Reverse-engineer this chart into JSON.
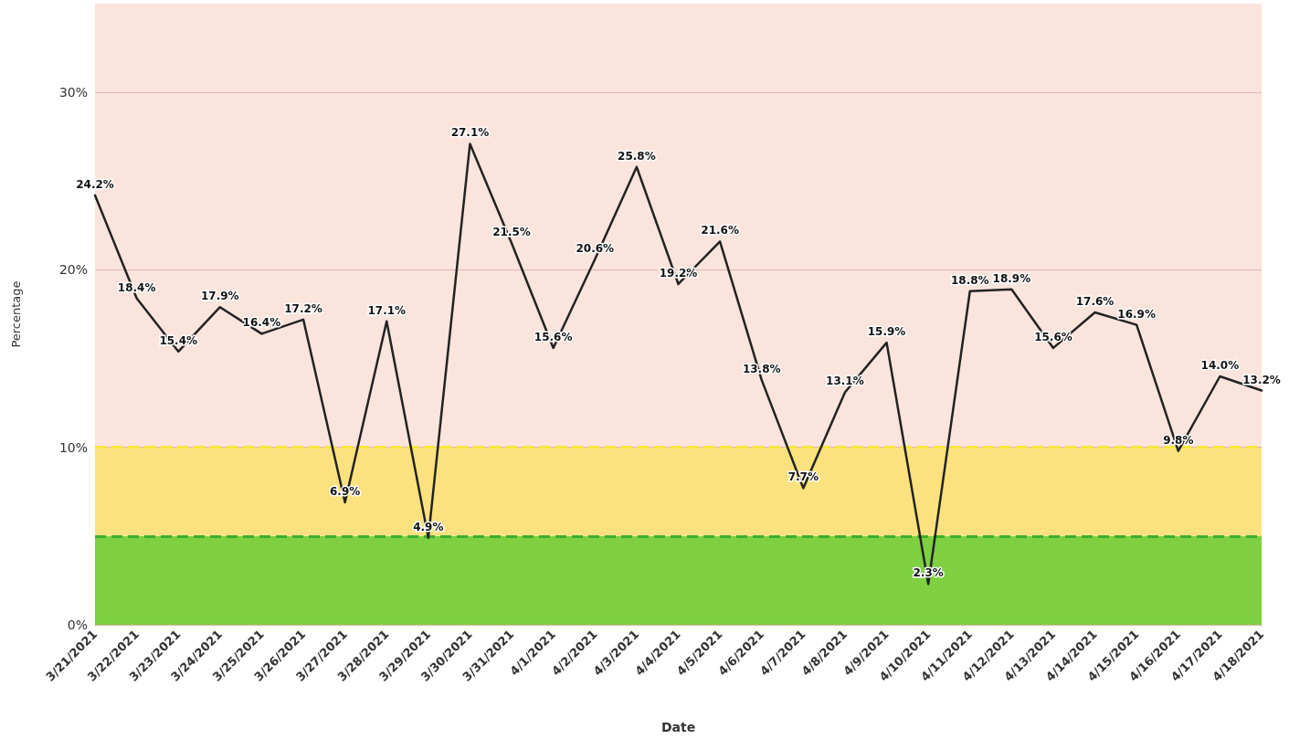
{
  "chart_data": {
    "type": "line",
    "xlabel": "Date",
    "ylabel": "Percentage",
    "categories": [
      "3/21/2021",
      "3/22/2021",
      "3/23/2021",
      "3/24/2021",
      "3/25/2021",
      "3/26/2021",
      "3/27/2021",
      "3/28/2021",
      "3/29/2021",
      "3/30/2021",
      "3/31/2021",
      "4/1/2021",
      "4/2/2021",
      "4/3/2021",
      "4/4/2021",
      "4/5/2021",
      "4/6/2021",
      "4/7/2021",
      "4/8/2021",
      "4/9/2021",
      "4/10/2021",
      "4/11/2021",
      "4/12/2021",
      "4/13/2021",
      "4/14/2021",
      "4/15/2021",
      "4/16/2021",
      "4/17/2021",
      "4/18/2021"
    ],
    "series": [
      {
        "color": "#222222",
        "values": [
          24.2,
          18.4,
          15.4,
          17.9,
          16.4,
          17.2,
          6.9,
          17.1,
          4.9,
          27.1,
          21.5,
          15.6,
          20.6,
          25.8,
          19.2,
          21.6,
          13.8,
          7.7,
          13.1,
          15.9,
          2.3,
          18.8,
          18.9,
          15.6,
          17.6,
          16.9,
          9.8,
          14.0,
          13.2
        ],
        "value_labels": [
          "24.2%",
          "18.4%",
          "15.4%",
          "17.9%",
          "16.4%",
          "17.2%",
          "6.9%",
          "17.1%",
          "4.9%",
          "27.1%",
          "21.5%",
          "15.6%",
          "20.6%",
          "25.8%",
          "19.2%",
          "21.6%",
          "13.8%",
          "7.7%",
          "13.1%",
          "15.9%",
          "2.3%",
          "18.8%",
          "18.9%",
          "15.6%",
          "17.6%",
          "16.9%",
          "9.8%",
          "14.0%",
          "13.2%"
        ]
      }
    ],
    "ylim": [
      0,
      35
    ],
    "yticks": [
      {
        "value": 0,
        "label": "0%"
      },
      {
        "value": 10,
        "label": "10%"
      },
      {
        "value": 20,
        "label": "20%"
      },
      {
        "value": 30,
        "label": "30%"
      }
    ],
    "grid": "y",
    "marker": "none",
    "line_style": "solid",
    "bands": [
      {
        "axis": "y",
        "from": 0,
        "to": 5,
        "color": "#7ed040"
      },
      {
        "axis": "y",
        "from": 5,
        "to": 10,
        "color": "#fbe27e"
      },
      {
        "axis": "y",
        "from": 10,
        "to": 35,
        "color": "#fbe4dc"
      }
    ],
    "ref_lines": [
      {
        "axis": "y",
        "value": 5,
        "color": "#3cae2c",
        "line_style": "dashed"
      },
      {
        "axis": "y",
        "value": 10,
        "color": "#f5e83a",
        "line_style": "dashed"
      }
    ]
  }
}
